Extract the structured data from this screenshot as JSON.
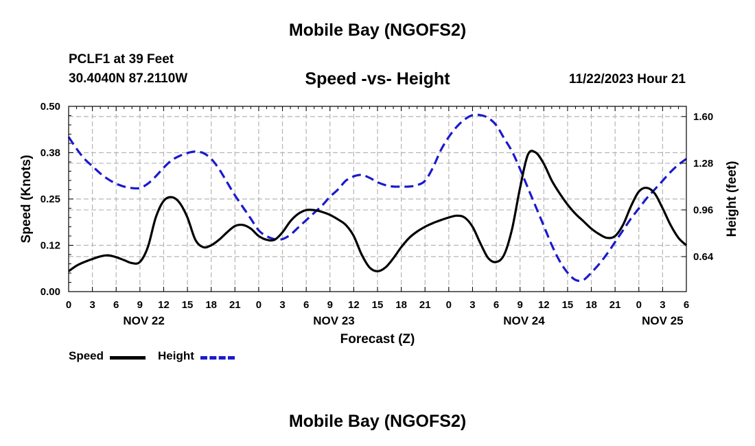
{
  "header": {
    "title": "Mobile Bay (NGOFS2)",
    "station": "PCLF1 at 39 Feet",
    "coordinates": "30.4040N  87.2110W",
    "chart_title": "Speed -vs- Height",
    "datetime": "11/22/2023 Hour 21"
  },
  "legend": {
    "speed_label": "Speed",
    "height_label": "Height"
  },
  "footer": {
    "title": "Mobile Bay (NGOFS2)"
  },
  "colors": {
    "speed": "#000000",
    "height": "#1a1acc",
    "grid": "#b4b4b4"
  },
  "chart_data": {
    "type": "line",
    "title": "Speed -vs- Height",
    "xlabel": "Forecast (Z)",
    "ylabel": "Speed (Knots)",
    "y2label": "Height (feet)",
    "xlim": [
      0,
      78
    ],
    "ylim": [
      0,
      0.5
    ],
    "y2lim": [
      0.4,
      1.67
    ],
    "x_ticks": [
      0,
      3,
      6,
      9,
      12,
      15,
      18,
      21,
      24,
      27,
      30,
      33,
      36,
      39,
      42,
      45,
      48,
      51,
      54,
      57,
      60,
      63,
      66,
      69,
      72,
      75,
      78
    ],
    "x_tick_labels": [
      "0",
      "3",
      "6",
      "9",
      "12",
      "15",
      "18",
      "21",
      "0",
      "3",
      "6",
      "9",
      "12",
      "15",
      "18",
      "21",
      "0",
      "3",
      "6",
      "9",
      "12",
      "15",
      "18",
      "21",
      "0",
      "3",
      "6"
    ],
    "date_labels": [
      {
        "x": 9.5,
        "label": "NOV 22"
      },
      {
        "x": 33.5,
        "label": "NOV 23"
      },
      {
        "x": 57.5,
        "label": "NOV 24"
      },
      {
        "x": 75,
        "label": "NOV 25"
      }
    ],
    "y_ticks": [
      0,
      0.125,
      0.25,
      0.375,
      0.5
    ],
    "y_tick_labels": [
      "0.00",
      "0.12",
      "0.25",
      "0.38",
      "0.50"
    ],
    "y2_ticks": [
      0.64,
      0.96,
      1.28,
      1.6
    ],
    "y2_tick_labels": [
      "0.64",
      "0.96",
      "1.28",
      "1.60"
    ],
    "series": [
      {
        "name": "Speed",
        "axis": "left",
        "style": "solid",
        "x": [
          0,
          1,
          2,
          3,
          4,
          5,
          6,
          7,
          8,
          9,
          10,
          11,
          12,
          13,
          14,
          15,
          16,
          17,
          18,
          19,
          20,
          21,
          22,
          23,
          24,
          25,
          26,
          27,
          28,
          29,
          30,
          31,
          32,
          33,
          34,
          35,
          36,
          37,
          38,
          39,
          40,
          41,
          42,
          43,
          44,
          45,
          46,
          47,
          48,
          49,
          50,
          51,
          52,
          53,
          54,
          55,
          56,
          57,
          58,
          59,
          60,
          61,
          62,
          63,
          64,
          65,
          66,
          67,
          68,
          69,
          70,
          71,
          72,
          73,
          74,
          75,
          76,
          77,
          78
        ],
        "values": [
          0.055,
          0.07,
          0.08,
          0.088,
          0.095,
          0.098,
          0.093,
          0.085,
          0.077,
          0.08,
          0.12,
          0.2,
          0.245,
          0.255,
          0.24,
          0.2,
          0.14,
          0.12,
          0.125,
          0.14,
          0.16,
          0.177,
          0.18,
          0.17,
          0.15,
          0.14,
          0.14,
          0.16,
          0.19,
          0.21,
          0.22,
          0.22,
          0.215,
          0.207,
          0.195,
          0.18,
          0.15,
          0.1,
          0.065,
          0.055,
          0.065,
          0.09,
          0.12,
          0.145,
          0.162,
          0.175,
          0.185,
          0.193,
          0.2,
          0.205,
          0.2,
          0.175,
          0.13,
          0.09,
          0.08,
          0.1,
          0.17,
          0.28,
          0.37,
          0.375,
          0.345,
          0.3,
          0.265,
          0.235,
          0.21,
          0.19,
          0.17,
          0.155,
          0.145,
          0.15,
          0.18,
          0.23,
          0.27,
          0.28,
          0.265,
          0.225,
          0.18,
          0.145,
          0.125
        ]
      },
      {
        "name": "Height",
        "axis": "right",
        "style": "dashed",
        "x": [
          0,
          1,
          2,
          3,
          4,
          5,
          6,
          7,
          8,
          9,
          10,
          11,
          12,
          13,
          14,
          15,
          16,
          17,
          18,
          19,
          20,
          21,
          22,
          23,
          24,
          25,
          26,
          27,
          28,
          29,
          30,
          31,
          32,
          33,
          34,
          35,
          36,
          37,
          38,
          39,
          40,
          41,
          42,
          43,
          44,
          45,
          46,
          47,
          48,
          49,
          50,
          51,
          52,
          53,
          54,
          55,
          56,
          57,
          58,
          59,
          60,
          61,
          62,
          63,
          64,
          65,
          66,
          67,
          68,
          69,
          70,
          71,
          72,
          73,
          74,
          75,
          76,
          77,
          78
        ],
        "values": [
          1.46,
          1.38,
          1.31,
          1.26,
          1.21,
          1.17,
          1.14,
          1.12,
          1.11,
          1.11,
          1.14,
          1.19,
          1.25,
          1.3,
          1.33,
          1.35,
          1.36,
          1.35,
          1.31,
          1.24,
          1.15,
          1.06,
          0.98,
          0.9,
          0.82,
          0.78,
          0.76,
          0.76,
          0.79,
          0.84,
          0.89,
          0.94,
          0.99,
          1.05,
          1.1,
          1.16,
          1.19,
          1.2,
          1.18,
          1.15,
          1.13,
          1.12,
          1.12,
          1.12,
          1.13,
          1.16,
          1.25,
          1.37,
          1.46,
          1.53,
          1.58,
          1.61,
          1.61,
          1.59,
          1.54,
          1.45,
          1.36,
          1.24,
          1.11,
          0.98,
          0.85,
          0.72,
          0.61,
          0.53,
          0.48,
          0.48,
          0.53,
          0.59,
          0.66,
          0.74,
          0.82,
          0.9,
          0.97,
          1.04,
          1.1,
          1.16,
          1.22,
          1.27,
          1.31
        ]
      }
    ]
  }
}
